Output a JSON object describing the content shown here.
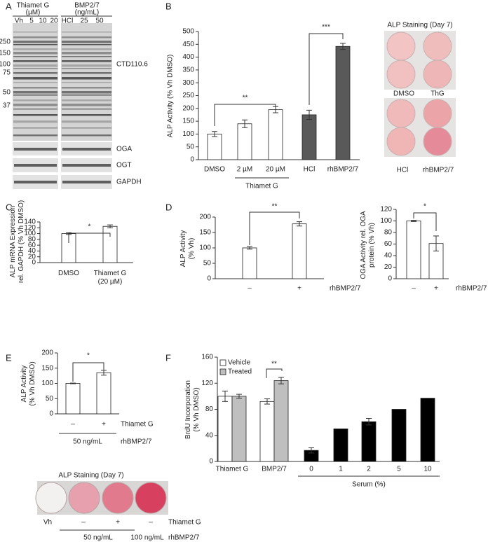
{
  "figure": {
    "panel_labels": [
      "A",
      "B",
      "C",
      "D",
      "E",
      "F"
    ]
  },
  "blot": {
    "treatments": [
      {
        "title": [
          "Thiamet G",
          "(µM)"
        ],
        "lanes": [
          "Vh",
          "5",
          "10",
          "20"
        ]
      },
      {
        "title": [
          "BMP2/7",
          "(ng/mL)"
        ],
        "lanes": [
          "HCl",
          "25",
          "50"
        ]
      }
    ],
    "markers": [
      "250",
      "150",
      "100",
      "75",
      "50",
      "37"
    ],
    "antibodies": [
      "CTD110.6",
      "OGA",
      "OGT",
      "GAPDH"
    ]
  },
  "staining_b": {
    "title": "ALP Staining (Day 7)",
    "labels": [
      "DMSO",
      "ThG",
      "HCl",
      "rhBMP2/7"
    ]
  },
  "staining_e": {
    "title": "ALP Staining (Day 7)",
    "lanes": [
      "Vh",
      "–",
      "+",
      "–"
    ],
    "row_labels": [
      "Thiamet G",
      "rhBMP2/7"
    ],
    "doses": [
      "50 ng/mL",
      "100 ng/mL"
    ]
  },
  "chart_data": [
    {
      "type": "bar",
      "ylabel": "ALP Activity (% Vh DMSO)",
      "categories": [
        "DMSO",
        "2 µM",
        "20 µM",
        "HCl",
        "rhBMP2/7"
      ],
      "series": [
        {
          "colors": [
            "#ffffff",
            "#ffffff",
            "#ffffff",
            "#595959",
            "#595959"
          ],
          "values": [
            100,
            140,
            195,
            175,
            442
          ],
          "errors": [
            10,
            15,
            12,
            18,
            12
          ]
        }
      ],
      "ylim": [
        0,
        500
      ],
      "yticks": [
        0,
        50,
        100,
        150,
        200,
        250,
        300,
        350,
        400,
        450,
        500
      ],
      "group_label": "Thiamet G",
      "annotations": [
        "**",
        "***"
      ]
    },
    {
      "type": "bar",
      "ylabel": [
        "ALP mRNA Expression",
        "rel. GAPDH (% Vh DMSO)"
      ],
      "categories": [
        [
          "DMSO"
        ],
        [
          "Thiamet G",
          "(20 µM)"
        ]
      ],
      "series": [
        {
          "color": "#ffffff",
          "values": [
            100,
            125
          ],
          "errors": [
            3,
            5
          ]
        }
      ],
      "ylim": [
        0,
        140
      ],
      "yticks": [
        0,
        20,
        40,
        60,
        80,
        100,
        120,
        140
      ],
      "annotations": [
        "*"
      ]
    },
    {
      "type": "bar",
      "ylabel": [
        "ALP Activity",
        "(% Vh)"
      ],
      "categories": [
        "–",
        "+"
      ],
      "series": [
        {
          "color": "#ffffff",
          "values": [
            100,
            178
          ],
          "errors": [
            4,
            7
          ]
        }
      ],
      "ylim": [
        0,
        200
      ],
      "yticks": [
        0,
        50,
        100,
        150,
        200
      ],
      "xlabel": "rhBMP2/7",
      "annotations": [
        "**"
      ]
    },
    {
      "type": "bar",
      "ylabel": [
        "OGA Activity rel. OGA",
        "protein (% Vh)"
      ],
      "categories": [
        "–",
        "+"
      ],
      "series": [
        {
          "color": "#ffffff",
          "values": [
            100,
            61
          ],
          "errors": [
            1,
            13
          ]
        }
      ],
      "ylim": [
        0,
        120
      ],
      "yticks": [
        0,
        20,
        40,
        60,
        80,
        100,
        120
      ],
      "xlabel": "rhBMP2/7",
      "annotations": [
        "*"
      ]
    },
    {
      "type": "bar",
      "ylabel": [
        "ALP Activity",
        "(% Vh DMSO)"
      ],
      "categories": [
        "–",
        "+"
      ],
      "series": [
        {
          "color": "#ffffff",
          "values": [
            100,
            135
          ],
          "errors": [
            1,
            8
          ]
        }
      ],
      "ylim": [
        0,
        200
      ],
      "yticks": [
        0,
        50,
        100,
        150,
        200
      ],
      "row_labels": [
        "Thiamet G",
        "rhBMP2/7"
      ],
      "group_label": "50 ng/mL",
      "annotations": [
        "*"
      ]
    },
    {
      "type": "bar",
      "ylabel": [
        "BrdU Incorporation",
        "(% Vh DMSO)"
      ],
      "categories": [
        "Thiamet G",
        "BMP2/7",
        "0",
        "1",
        "2",
        "5",
        "10"
      ],
      "series": [
        {
          "name": "Vehicle",
          "color": "#ffffff",
          "values": [
            100,
            92,
            null,
            null,
            null,
            null,
            null
          ],
          "errors": [
            8,
            4,
            null,
            null,
            null,
            null,
            null
          ]
        },
        {
          "name": "Treated",
          "color": "#bfbfbf",
          "values": [
            100,
            124,
            null,
            null,
            null,
            null,
            null
          ],
          "errors": [
            3,
            5,
            null,
            null,
            null,
            null,
            null
          ]
        },
        {
          "color": "#000000",
          "values": [
            null,
            null,
            17,
            50,
            61,
            80,
            97
          ],
          "errors": [
            null,
            null,
            4,
            null,
            5,
            null,
            null
          ]
        }
      ],
      "ylim": [
        0,
        160
      ],
      "yticks": [
        0,
        40,
        80,
        120,
        160
      ],
      "legend": "top-left",
      "group_label": "Serum (%)",
      "annotations": [
        "**"
      ]
    }
  ]
}
